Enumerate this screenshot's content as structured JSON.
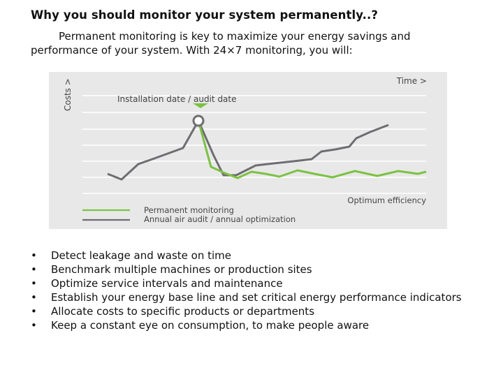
{
  "title": "Why you should monitor your system permanently..?",
  "intro": "Permanent monitoring is key to maximize your energy savings and performance of your system. With 24×7 monitoring, you will:",
  "figure": {
    "time_label": "Time  >",
    "costs_label": "Costs >",
    "marker_label": "Installation date / audit date",
    "optimum_label": "Optimum efficiency",
    "legend": [
      {
        "name": "Permanent monitoring",
        "color": "#7cc242"
      },
      {
        "name": "Annual air audit / annual optimization",
        "color": "#6d6e71"
      }
    ],
    "marker_color": "#7cc242"
  },
  "bullets": [
    "Detect leakage and waste on time",
    "Benchmark multiple machines or production sites",
    "Optimize service intervals and maintenance",
    "Establish your energy base line and set critical energy performance indicators",
    "Allocate costs to specific products or departments",
    "Keep a constant eye on consumption, to make people aware"
  ],
  "bullet_glyph": "•"
}
